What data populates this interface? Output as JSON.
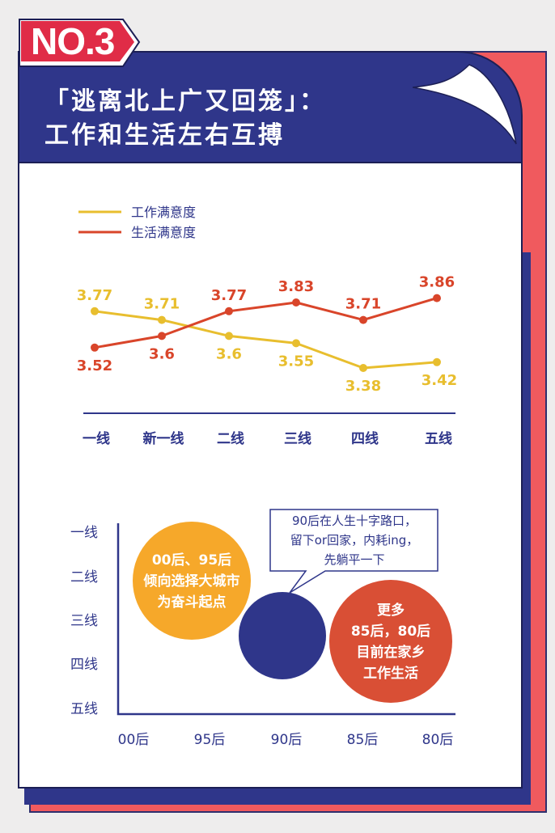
{
  "badge": "NO.3",
  "title_line1": "「逃离北上广又回笼」：",
  "title_line2": "工作和生活左右互搏",
  "colors": {
    "navy": "#2f368a",
    "red": "#f05a5e",
    "work": "#e8be2e",
    "life": "#d9452a",
    "bubble_yellow": "#f6a82a",
    "bubble_red": "#d94f35"
  },
  "chart_data": [
    {
      "type": "line",
      "categories": [
        "一线",
        "新一线",
        "二线",
        "三线",
        "四线",
        "五线"
      ],
      "series": [
        {
          "name": "工作满意度",
          "values": [
            3.77,
            3.71,
            3.6,
            3.55,
            3.38,
            3.42
          ]
        },
        {
          "name": "生活满意度",
          "values": [
            3.52,
            3.6,
            3.77,
            3.83,
            3.71,
            3.86
          ]
        }
      ],
      "legend": "top-left",
      "grid": false
    },
    {
      "type": "scatter",
      "x_categories": [
        "00后",
        "95后",
        "90后",
        "85后",
        "80后"
      ],
      "y_categories": [
        "一线",
        "二线",
        "三线",
        "四线",
        "五线"
      ],
      "bubbles": [
        {
          "label": [
            "00后、95后",
            "倾向选择大城市",
            "为奋斗起点"
          ],
          "color": "#f6a82a"
        },
        {
          "label": [],
          "color": "#2f368a",
          "callout": [
            "90后在人生十字路口，",
            "留下or回家，内耗ing，",
            "先躺平一下"
          ]
        },
        {
          "label": [
            "更多",
            "85后，80后",
            "目前在家乡",
            "工作生活"
          ],
          "color": "#d94f35"
        }
      ]
    }
  ]
}
